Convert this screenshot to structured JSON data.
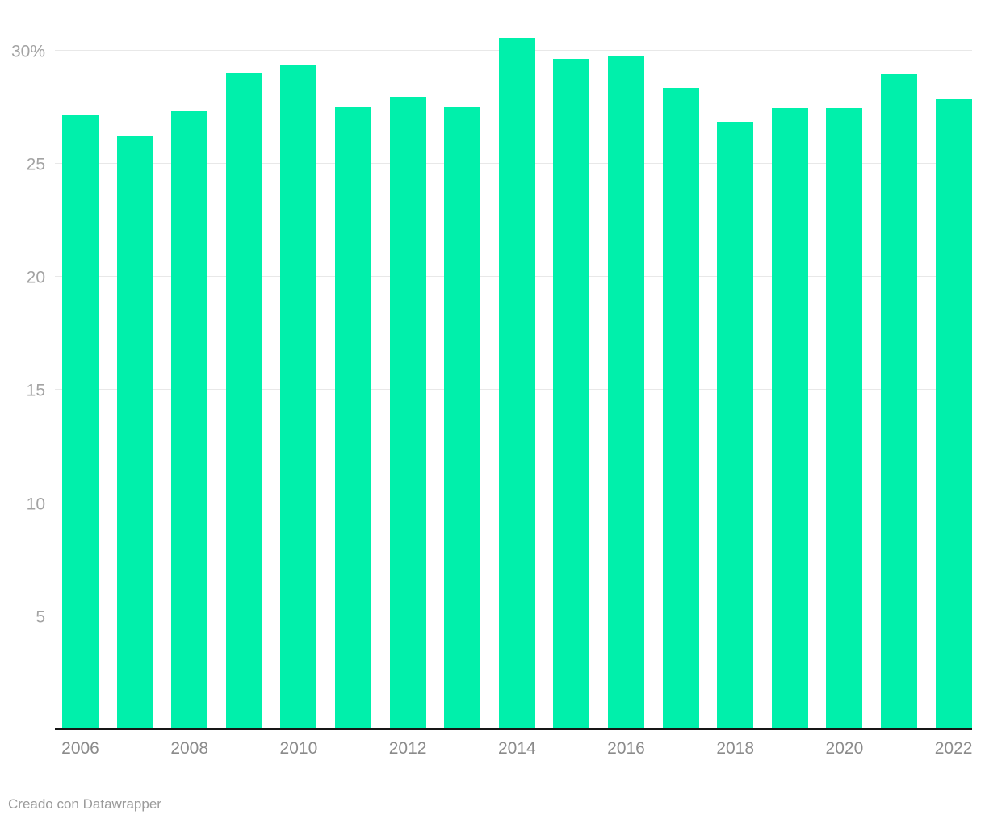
{
  "chart_data": {
    "type": "bar",
    "categories": [
      "2006",
      "2007",
      "2008",
      "2009",
      "2010",
      "2011",
      "2012",
      "2013",
      "2014",
      "2015",
      "2016",
      "2017",
      "2018",
      "2019",
      "2020",
      "2021",
      "2022"
    ],
    "values": [
      27.1,
      26.2,
      27.3,
      29.0,
      29.3,
      27.5,
      27.9,
      27.5,
      30.5,
      29.6,
      29.7,
      28.3,
      26.8,
      27.4,
      27.4,
      28.9,
      27.8
    ],
    "title": "",
    "xlabel": "",
    "ylabel": "",
    "ylim": [
      0,
      30
    ],
    "yticks": [
      5,
      10,
      15,
      20,
      25,
      30
    ],
    "ytick_labels": [
      "5",
      "10",
      "15",
      "20",
      "25",
      "30%"
    ],
    "xtick_labels": [
      "2006",
      "2008",
      "2010",
      "2012",
      "2014",
      "2016",
      "2018",
      "2020",
      "2022"
    ],
    "xtick_every": 2,
    "grid": "horizontal",
    "legend": "none",
    "bar_color": "#00f0ab",
    "gridline_color": "#e8e8e8",
    "axis_color": "#161616",
    "ytick_color": "#a3a3a3",
    "xtick_color": "#8b8b8b"
  },
  "footer": {
    "credit": "Creado con Datawrapper",
    "credit_color": "#9b9b9b"
  }
}
